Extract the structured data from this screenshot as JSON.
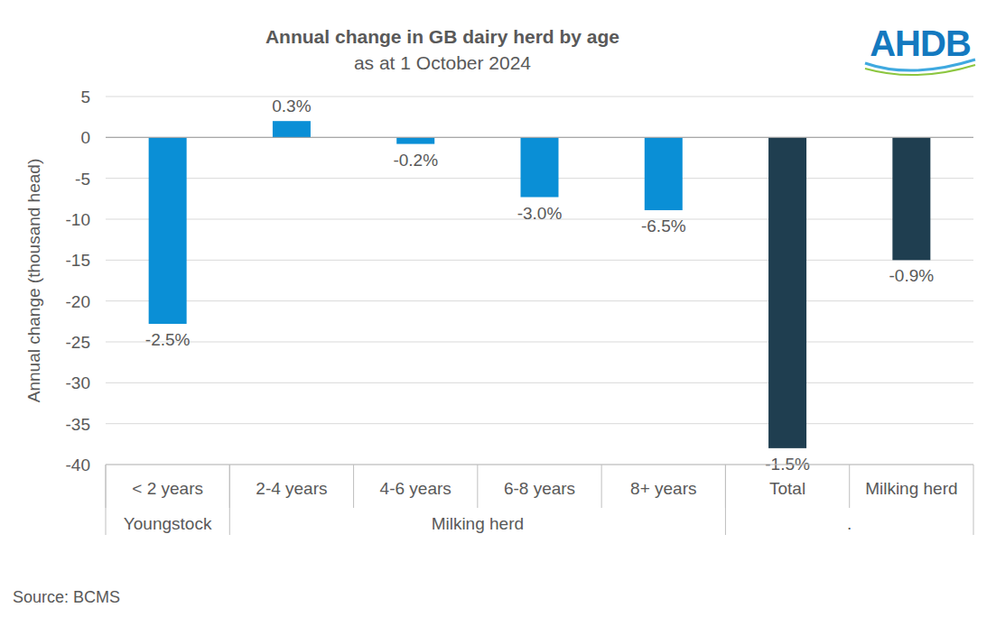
{
  "chart_data": {
    "type": "bar",
    "title": "Annual change in GB dairy herd by age",
    "subtitle": "as at 1 October 2024",
    "y_label": "Annual change (thousand head)",
    "categories": [
      "< 2 years",
      "2-4 years",
      "4-6 years",
      "6-8 years",
      "8+ years",
      "Total",
      "Milking herd"
    ],
    "values": [
      -22.8,
      2.0,
      -0.8,
      -7.3,
      -8.9,
      -38.0,
      -15.0
    ],
    "annotations": [
      "-2.5%",
      "0.3%",
      "-0.2%",
      "-3.0%",
      "-6.5%",
      "-1.5%",
      "-0.9%"
    ],
    "colors": [
      "#0a8fd6",
      "#0a8fd6",
      "#0a8fd6",
      "#0a8fd6",
      "#0a8fd6",
      "#1f3e50",
      "#1f3e50"
    ],
    "groups": [
      {
        "label": "Youngstock",
        "categories": [
          0
        ]
      },
      {
        "label": "Milking herd",
        "categories": [
          1,
          2,
          3,
          4
        ]
      },
      {
        "label": ".",
        "categories": [
          5,
          6
        ]
      }
    ],
    "ylim": [
      -40,
      5
    ],
    "yticks": [
      5,
      0,
      -5,
      -10,
      -15,
      -20,
      -25,
      -30,
      -35,
      -40
    ],
    "grid": true,
    "source": "Source: BCMS",
    "logo": "AHDB"
  }
}
